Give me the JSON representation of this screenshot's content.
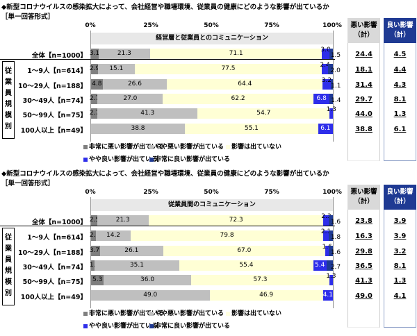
{
  "colors": {
    "very_bad": "#7f7f7f",
    "somewhat_bad": "#bfbfbf",
    "none": "#ffffd5",
    "somewhat_good": "#2e2eea",
    "very_good": "#1f3a93",
    "bad_header": "#d9d9d9",
    "good_header": "#1f3a93"
  },
  "chart_data": [
    {
      "type": "bar",
      "orientation": "horizontal-stacked-100",
      "title": "◆新型コロナウイルスの感染拡大によって、会社経営や職場環境、従業員の健康にどのような影響が出ているか",
      "subtitle": "［単一回答形式］",
      "panel_title": "経営層と従業員とのコミュニケーション",
      "xticks": [
        "0%",
        "25%",
        "50%",
        "75%",
        "100%"
      ],
      "xlim": [
        0,
        100
      ],
      "group_label": "従業員規模別",
      "categories": [
        "全体【n=1000】",
        "1～9人【n=614】",
        "10～29人【n=188】",
        "30～49人【n=74】",
        "50～99人【n=75】",
        "100人以上【n=49】"
      ],
      "series": [
        {
          "name": "非常に悪い影響が出ている",
          "values": [
            3.1,
            2.9,
            4.8,
            2.7,
            2.7,
            null
          ]
        },
        {
          "name": "やや悪い影響が出ている",
          "values": [
            21.3,
            15.1,
            26.6,
            27.0,
            41.3,
            38.8
          ]
        },
        {
          "name": "影響は出ていない",
          "values": [
            71.1,
            77.5,
            64.4,
            62.2,
            54.7,
            55.1
          ]
        },
        {
          "name": "やや良い影響が出ている",
          "values": [
            3.0,
            2.4,
            3.2,
            6.8,
            1.3,
            6.1
          ]
        },
        {
          "name": "非常に良い影響が出ている",
          "values": [
            1.5,
            2.0,
            1.1,
            1.4,
            null,
            null
          ]
        }
      ],
      "totals_headers": {
        "bad": "悪い影響",
        "bad_sub": "（計）",
        "good": "良い影響",
        "good_sub": "（計）"
      },
      "bad_total": [
        "24.4",
        "18.1",
        "31.4",
        "29.7",
        "44.0",
        "38.8"
      ],
      "good_total": [
        "4.5",
        "4.4",
        "4.3",
        "8.1",
        "1.3",
        "6.1"
      ],
      "legend_position": "bottom"
    },
    {
      "type": "bar",
      "orientation": "horizontal-stacked-100",
      "title": "◆新型コロナウイルスの感染拡大によって、会社経営や職場環境、従業員の健康にどのような影響が出ているか",
      "subtitle": "［単一回答形式］",
      "panel_title": "従業員間のコミュニケーション",
      "xticks": [
        "0%",
        "25%",
        "50%",
        "75%",
        "100%"
      ],
      "xlim": [
        0,
        100
      ],
      "group_label": "従業員規模別",
      "categories": [
        "全体【n=1000】",
        "1～9人【n=614】",
        "10～29人【n=188】",
        "30～49人【n=74】",
        "50～99人【n=75】",
        "100人以上【n=49】"
      ],
      "series": [
        {
          "name": "非常に悪い影響が出ている",
          "values": [
            2.5,
            2.1,
            3.7,
            1.4,
            5.3,
            null
          ]
        },
        {
          "name": "やや悪い影響が出ている",
          "values": [
            21.3,
            14.2,
            26.1,
            35.1,
            36.0,
            49.0
          ]
        },
        {
          "name": "影響は出ていない",
          "values": [
            72.3,
            79.8,
            67.0,
            55.4,
            57.3,
            46.9
          ]
        },
        {
          "name": "やや良い影響が出ている",
          "values": [
            2.3,
            2.1,
            1.6,
            5.4,
            1.3,
            4.1
          ]
        },
        {
          "name": "非常に良い影響が出ている",
          "values": [
            1.6,
            1.8,
            1.6,
            2.7,
            null,
            null
          ]
        }
      ],
      "totals_headers": {
        "bad": "悪い影響",
        "bad_sub": "（計）",
        "good": "良い影響",
        "good_sub": "（計）"
      },
      "bad_total": [
        "23.8",
        "16.3",
        "29.8",
        "36.5",
        "41.3",
        "49.0"
      ],
      "good_total": [
        "3.9",
        "3.9",
        "3.2",
        "8.1",
        "1.3",
        "4.1"
      ],
      "legend_position": "bottom"
    }
  ]
}
